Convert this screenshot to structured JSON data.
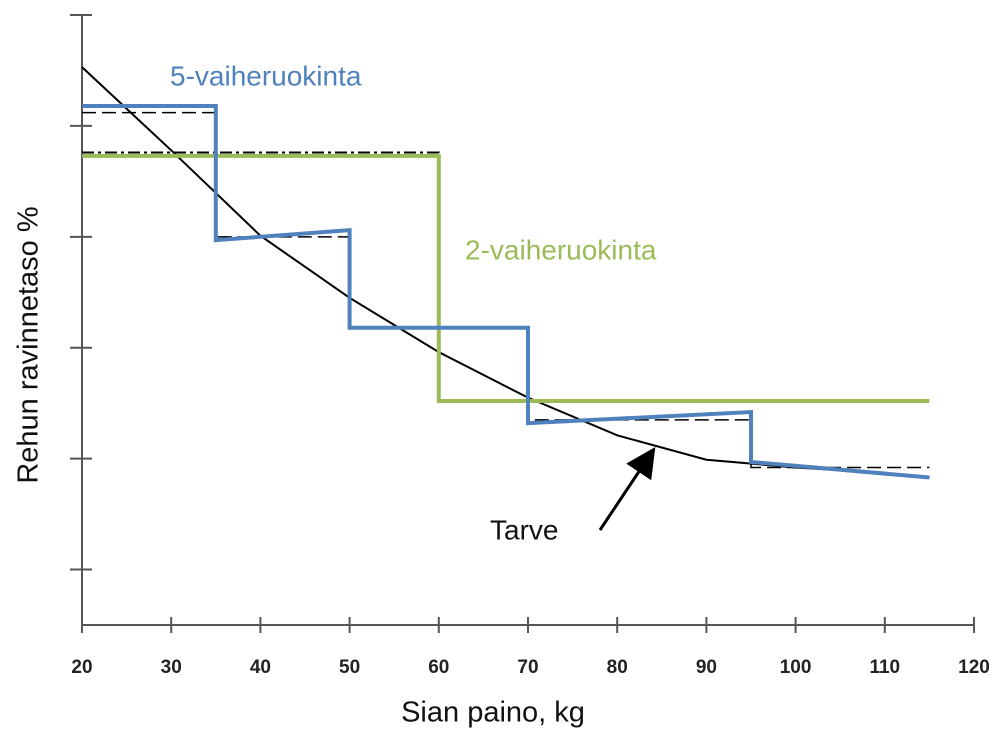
{
  "chart_data": {
    "type": "line",
    "xlabel": "Sian paino, kg",
    "ylabel": "Rehun ravinnetaso %",
    "xlim": [
      20,
      120
    ],
    "xticks": [
      20,
      30,
      40,
      50,
      60,
      70,
      80,
      90,
      100,
      110,
      120
    ],
    "ylim": [
      0.5,
      6
    ],
    "yticks": [
      1,
      2,
      3,
      4,
      5,
      6
    ],
    "series": [
      {
        "name": "5-vaiheruokinta",
        "color": "#4f81bd",
        "width": 4,
        "dash": "solid",
        "x": [
          20,
          35,
          35,
          50,
          50,
          70,
          70,
          95,
          95,
          115
        ],
        "values": [
          5.18,
          5.18,
          3.97,
          4.06,
          3.18,
          3.18,
          2.32,
          2.42,
          1.97,
          1.83
        ]
      },
      {
        "name": "2-vaiheruokinta",
        "color": "#9bbb59",
        "width": 4,
        "dash": "solid",
        "x": [
          20,
          60,
          60,
          115
        ],
        "values": [
          4.73,
          4.73,
          2.52,
          2.52
        ]
      },
      {
        "name": "Tarve",
        "color": "#000000",
        "width": 2,
        "dash": "solid",
        "x": [
          20,
          30,
          40,
          50,
          60,
          70,
          80,
          90,
          100,
          110,
          115
        ],
        "values": [
          5.53,
          4.78,
          4.01,
          3.45,
          2.96,
          2.55,
          2.21,
          1.99,
          1.92,
          1.87,
          1.83
        ]
      },
      {
        "color": "#000000",
        "width": 1.5,
        "dash": "dashed",
        "x": [
          20,
          35,
          35,
          50,
          50,
          70,
          70,
          95,
          95,
          115
        ],
        "values": [
          5.12,
          5.12,
          4.0,
          4.0,
          3.18,
          3.18,
          2.35,
          2.35,
          1.92,
          1.92
        ]
      },
      {
        "color": "#000000",
        "width": 2,
        "dash": "dashdot",
        "x": [
          20,
          60,
          60,
          115
        ],
        "values": [
          4.76,
          4.76,
          2.52,
          2.52
        ]
      }
    ]
  }
}
